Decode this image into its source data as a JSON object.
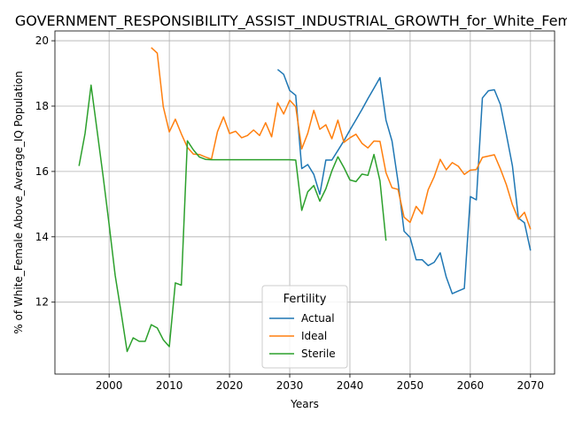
{
  "chart_data": {
    "type": "line",
    "title": "GOVERNMENT_RESPONSIBILITY_ASSIST_INDUSTRIAL_GROWTH_for_White_Female",
    "xlabel": "Years",
    "ylabel": "% of White_Female Above_Average_IQ Population",
    "xlim": [
      1991,
      2074
    ],
    "ylim": [
      9.8,
      20.3
    ],
    "xticks": [
      2000,
      2010,
      2020,
      2030,
      2040,
      2050,
      2060,
      2070
    ],
    "yticks": [
      12,
      14,
      16,
      18,
      20
    ],
    "grid": true,
    "legend": {
      "title": "Fertility",
      "placement": "lower-center"
    },
    "series": [
      {
        "name": "Actual",
        "color": "#1f77b4",
        "x": [
          2028,
          2029,
          2030,
          2031,
          2032,
          2033,
          2034,
          2035,
          2036,
          2037,
          2038,
          2039,
          2040,
          2041,
          2042,
          2043,
          2044,
          2045,
          2046,
          2047,
          2048,
          2049,
          2050,
          2051,
          2052,
          2053,
          2054,
          2055,
          2056,
          2057,
          2058,
          2059,
          2060,
          2061,
          2062,
          2063,
          2064,
          2065,
          2066,
          2067,
          2068,
          2069,
          2070
        ],
        "y": [
          19.12,
          18.97,
          18.48,
          18.33,
          16.09,
          16.21,
          15.91,
          15.3,
          16.35,
          16.35,
          16.64,
          16.94,
          17.27,
          17.58,
          17.9,
          18.23,
          18.55,
          18.87,
          17.57,
          16.93,
          15.68,
          14.17,
          13.98,
          13.3,
          13.3,
          13.12,
          13.22,
          13.51,
          12.77,
          12.26,
          12.34,
          12.42,
          15.23,
          15.13,
          18.25,
          18.47,
          18.5,
          18.05,
          17.13,
          16.17,
          14.57,
          14.43,
          13.58
        ]
      },
      {
        "name": "Ideal",
        "color": "#ff7f0e",
        "x": [
          2007,
          2008,
          2009,
          2010,
          2011,
          2012,
          2013,
          2014,
          2015,
          2016,
          2017,
          2018,
          2019,
          2020,
          2021,
          2022,
          2023,
          2024,
          2025,
          2026,
          2027,
          2028,
          2029,
          2030,
          2031,
          2032,
          2033,
          2034,
          2035,
          2036,
          2037,
          2038,
          2039,
          2040,
          2041,
          2042,
          2043,
          2044,
          2045,
          2046,
          2047,
          2048,
          2049,
          2050,
          2051,
          2052,
          2053,
          2054,
          2055,
          2056,
          2057,
          2058,
          2059,
          2060,
          2061,
          2062,
          2063,
          2064,
          2065,
          2066,
          2067,
          2068,
          2069,
          2070
        ],
        "y": [
          19.79,
          19.62,
          17.98,
          17.21,
          17.6,
          17.15,
          16.74,
          16.53,
          16.52,
          16.44,
          16.38,
          17.22,
          17.67,
          17.16,
          17.23,
          17.03,
          17.1,
          17.27,
          17.1,
          17.49,
          17.06,
          18.1,
          17.76,
          18.18,
          17.98,
          16.69,
          17.17,
          17.87,
          17.29,
          17.43,
          17.0,
          17.57,
          16.89,
          17.03,
          17.14,
          16.86,
          16.72,
          16.93,
          16.92,
          15.96,
          15.5,
          15.45,
          14.6,
          14.44,
          14.93,
          14.7,
          15.44,
          15.84,
          16.37,
          16.05,
          16.27,
          16.16,
          15.91,
          16.04,
          16.06,
          16.43,
          16.47,
          16.51,
          16.08,
          15.59,
          14.98,
          14.54,
          14.75,
          14.23
        ]
      },
      {
        "name": "Sterile",
        "color": "#2ca02c",
        "x": [
          1995,
          1996,
          1997,
          1998,
          1999,
          2000,
          2001,
          2002,
          2003,
          2004,
          2005,
          2006,
          2007,
          2008,
          2009,
          2010,
          2011,
          2012,
          2013,
          2014,
          2015,
          2016,
          2017,
          2018,
          2019,
          2020,
          2021,
          2022,
          2023,
          2024,
          2025,
          2026,
          2027,
          2028,
          2029,
          2030,
          2031,
          2032,
          2033,
          2034,
          2035,
          2036,
          2037,
          2038,
          2039,
          2040,
          2041,
          2042,
          2043,
          2044,
          2045,
          2046
        ],
        "y": [
          16.17,
          17.16,
          18.64,
          17.25,
          15.85,
          14.37,
          12.82,
          11.69,
          10.49,
          10.91,
          10.8,
          10.8,
          11.31,
          11.21,
          10.85,
          10.64,
          12.59,
          12.52,
          16.94,
          16.66,
          16.44,
          16.37,
          16.36,
          16.36,
          16.36,
          16.36,
          16.36,
          16.36,
          16.36,
          16.36,
          16.36,
          16.36,
          16.36,
          16.36,
          16.36,
          16.36,
          16.35,
          14.81,
          15.38,
          15.57,
          15.09,
          15.47,
          16.02,
          16.45,
          16.12,
          15.74,
          15.69,
          15.92,
          15.88,
          16.52,
          15.71,
          13.88
        ]
      }
    ]
  }
}
